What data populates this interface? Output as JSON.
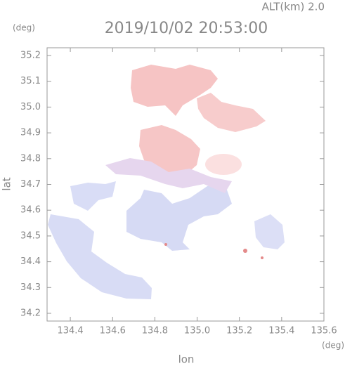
{
  "chart_data": {
    "type": "radar-map",
    "title": "2019/10/02 20:53:00",
    "subtitle": "ALT(km) 2.0",
    "x_label": "lon",
    "y_label": "lat",
    "x_unit": "(deg)",
    "y_unit": "(deg)",
    "xlim": [
      134.29,
      135.6
    ],
    "xticks": [
      134.4,
      134.6,
      134.8,
      {
        "value": 135,
        "label": "135.0"
      },
      135.2,
      135.4,
      135.6
    ],
    "ylim": [
      34.17,
      35.23
    ],
    "yticks": [
      34.2,
      34.3,
      34.4,
      34.5,
      34.6,
      34.7,
      34.8,
      34.9,
      {
        "value": 35,
        "label": "35.0"
      },
      35.1,
      35.2
    ]
  }
}
